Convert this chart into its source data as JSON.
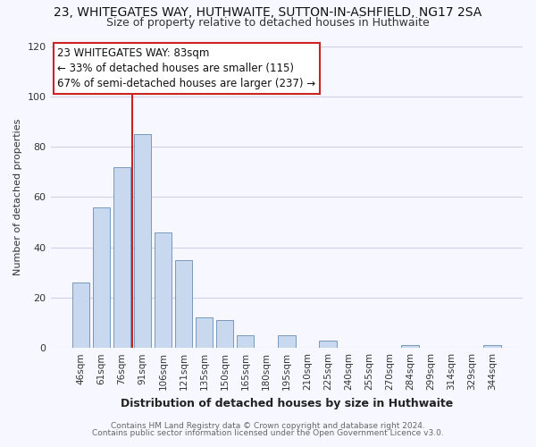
{
  "title": "23, WHITEGATES WAY, HUTHWAITE, SUTTON-IN-ASHFIELD, NG17 2SA",
  "subtitle": "Size of property relative to detached houses in Huthwaite",
  "xlabel": "Distribution of detached houses by size in Huthwaite",
  "ylabel": "Number of detached properties",
  "bar_labels": [
    "46sqm",
    "61sqm",
    "76sqm",
    "91sqm",
    "106sqm",
    "121sqm",
    "135sqm",
    "150sqm",
    "165sqm",
    "180sqm",
    "195sqm",
    "210sqm",
    "225sqm",
    "240sqm",
    "255sqm",
    "270sqm",
    "284sqm",
    "299sqm",
    "314sqm",
    "329sqm",
    "344sqm"
  ],
  "bar_values": [
    26,
    56,
    72,
    85,
    46,
    35,
    12,
    11,
    5,
    0,
    5,
    0,
    3,
    0,
    0,
    0,
    1,
    0,
    0,
    0,
    1
  ],
  "bar_color": "#c8d8ee",
  "bar_edge_color": "#7799bb",
  "vline_color": "#cc2222",
  "vline_x_idx": 2.5,
  "ylim": [
    0,
    120
  ],
  "yticks": [
    0,
    20,
    40,
    60,
    80,
    100,
    120
  ],
  "annotation_title": "23 WHITEGATES WAY: 83sqm",
  "annotation_line1": "← 33% of detached houses are smaller (115)",
  "annotation_line2": "67% of semi-detached houses are larger (237) →",
  "annotation_box_facecolor": "#ffffff",
  "annotation_box_edgecolor": "#cc2222",
  "footer1": "Contains HM Land Registry data © Crown copyright and database right 2024.",
  "footer2": "Contains public sector information licensed under the Open Government Licence v3.0.",
  "bg_color": "#f7f7ff",
  "grid_color": "#d0d0e8",
  "title_fontsize": 10,
  "subtitle_fontsize": 9,
  "ylabel_fontsize": 8,
  "xlabel_fontsize": 9,
  "tick_fontsize": 7.5,
  "annot_fontsize": 8.5,
  "footer_fontsize": 6.5
}
